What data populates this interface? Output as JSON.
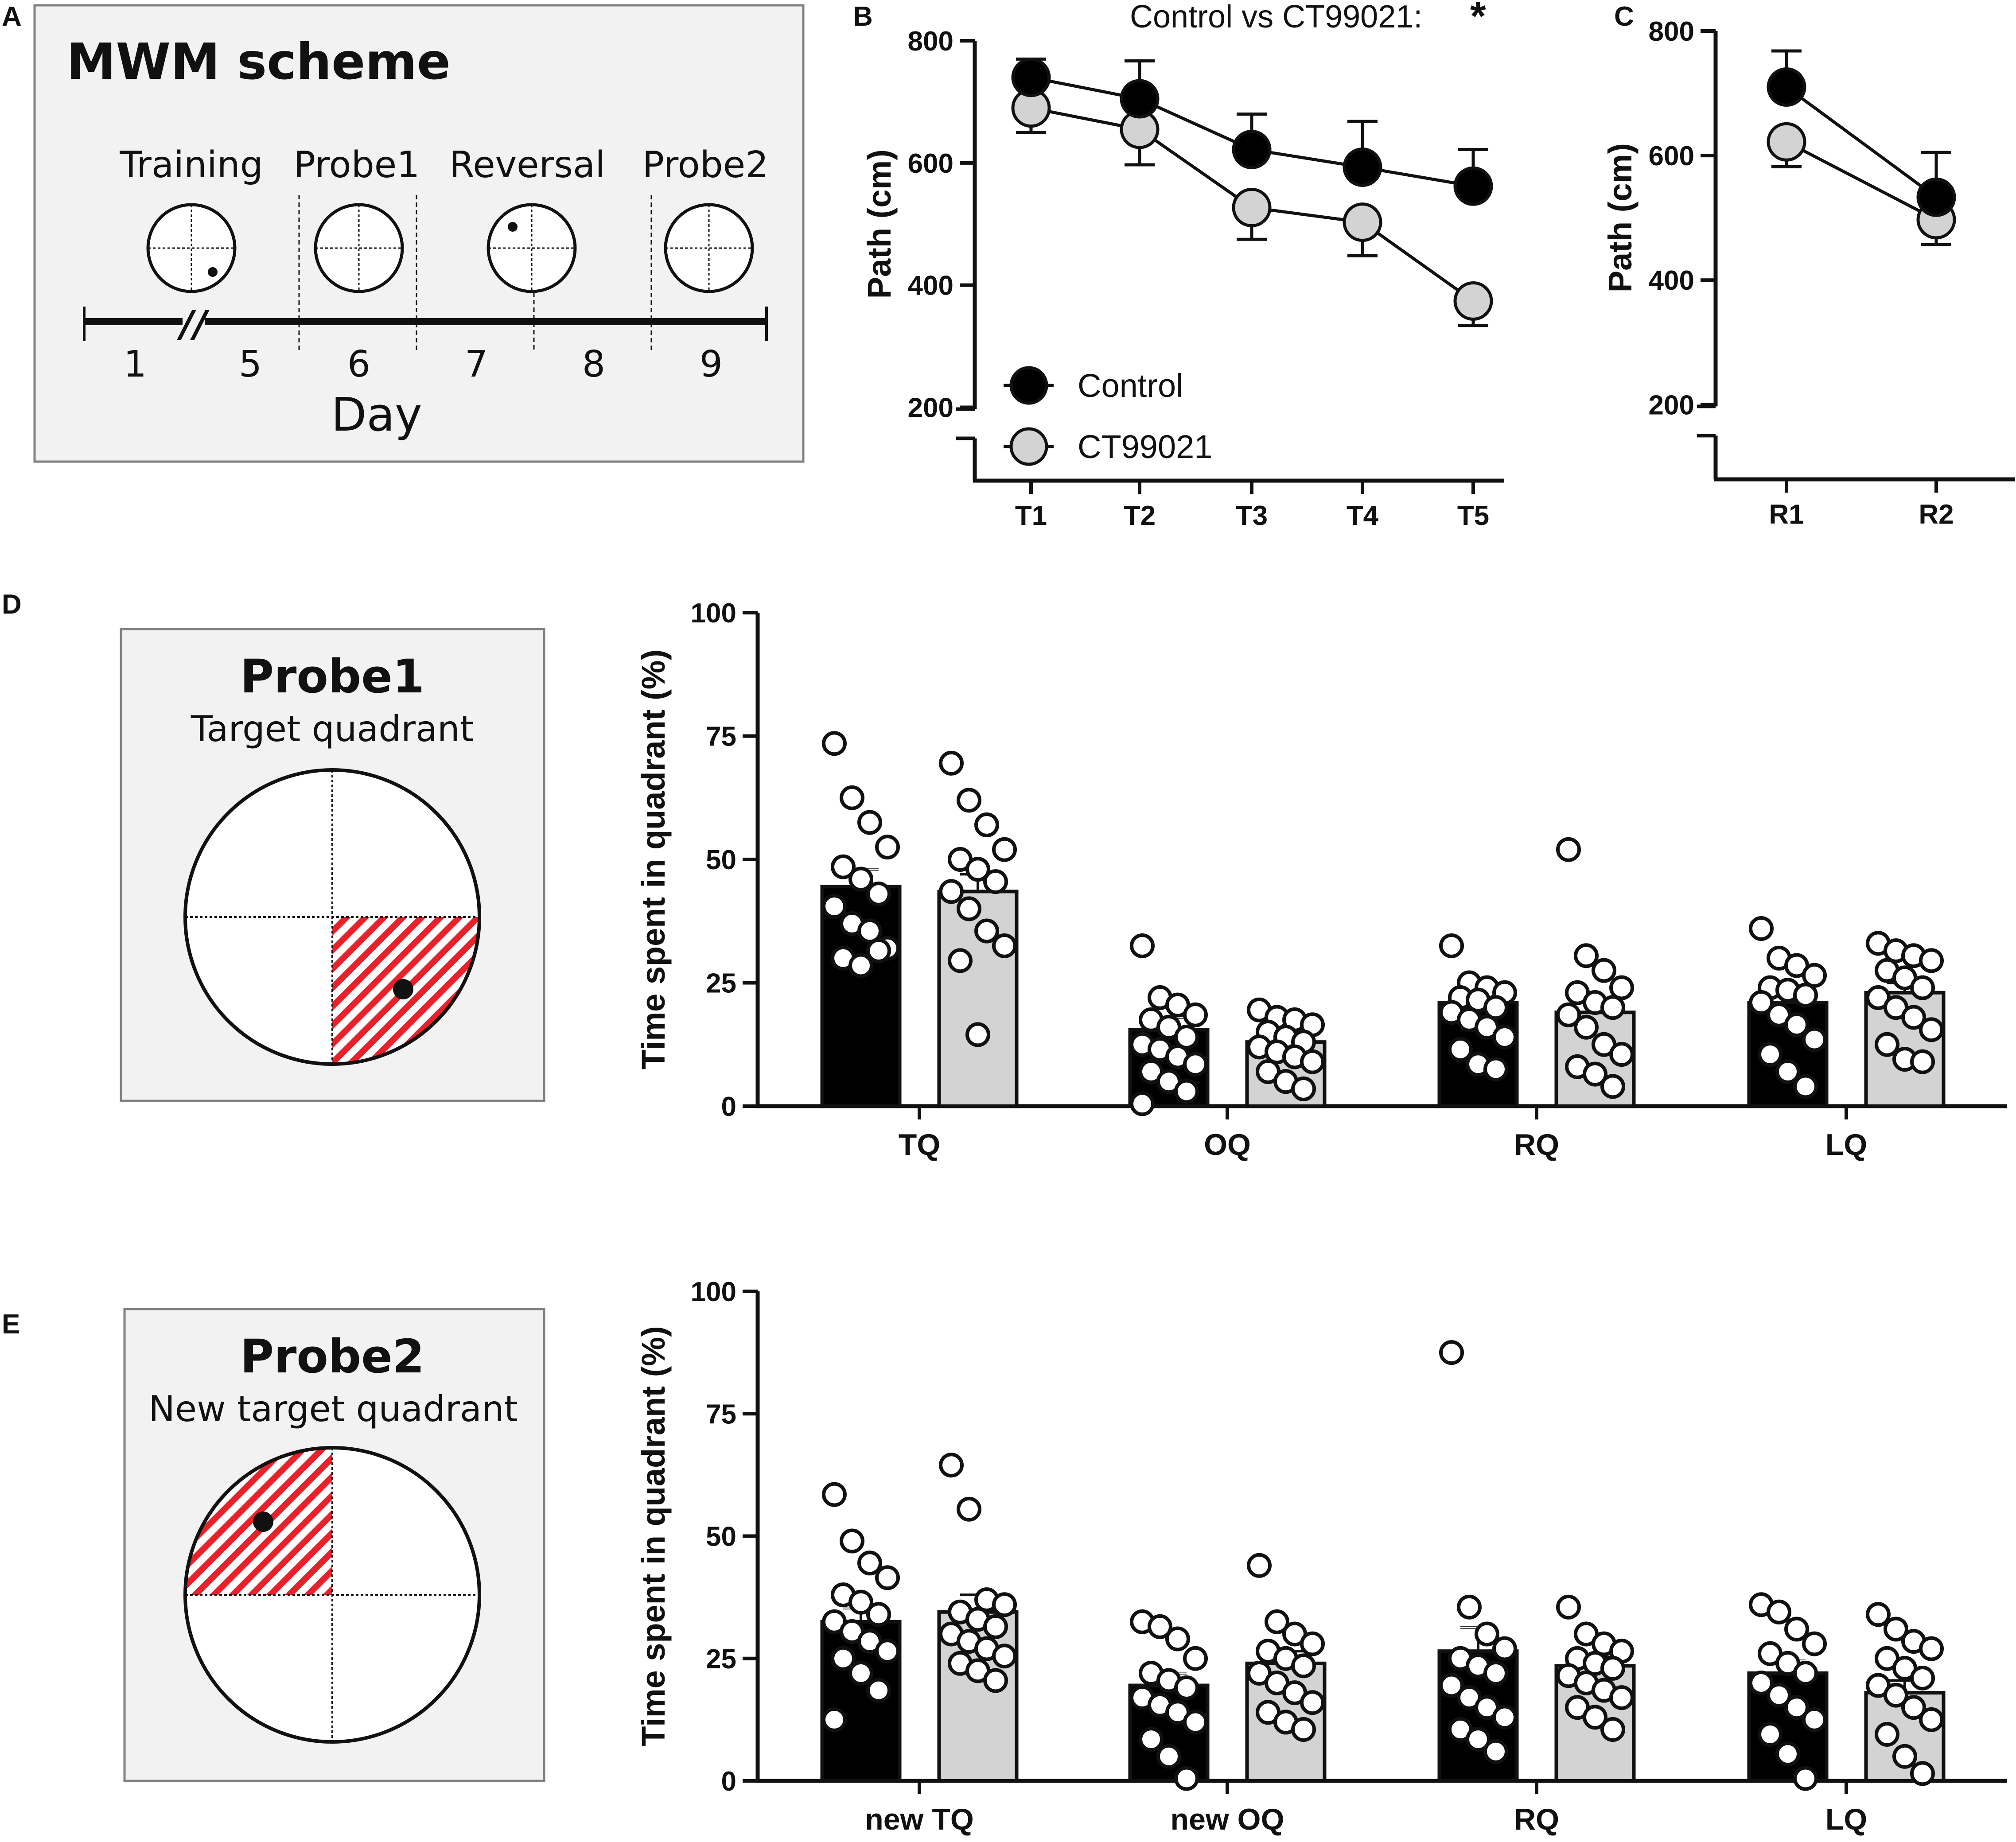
{
  "panels": {
    "A": {
      "letter": "A",
      "title": "MWM scheme",
      "phases": [
        "Training",
        "Probe1",
        "Reversal",
        "Probe2"
      ],
      "days": [
        "1",
        "5",
        "6",
        "7",
        "8",
        "9"
      ],
      "axis_break": "//",
      "axis_label": "Day"
    },
    "B": {
      "letter": "B"
    },
    "C": {
      "letter": "C"
    },
    "D": {
      "letter": "D",
      "box_title": "Probe1",
      "box_subtitle": "Target quadrant"
    },
    "E": {
      "letter": "E",
      "box_title": "Probe2",
      "box_subtitle": "New target quadrant"
    }
  },
  "colors": {
    "control": "#000000",
    "ct99021": "#d3d3d3",
    "panel_bg": "#f2f2f2",
    "panel_border": "#808080",
    "stripe": "#e8212b"
  },
  "chart_data": [
    {
      "id": "B",
      "type": "line",
      "title": "Control vs CT99021: *",
      "comparison": {
        "text": "Control vs CT99021:",
        "significance": "*"
      },
      "xlabel": "",
      "ylabel": "Path (cm)",
      "categories": [
        "T1",
        "T2",
        "T3",
        "T4",
        "T5"
      ],
      "yticks": [
        200,
        400,
        600,
        800
      ],
      "ylim": [
        80,
        800
      ],
      "axis_break": true,
      "legend": {
        "position": "bottom-left",
        "entries": [
          "Control",
          "CT99021"
        ]
      },
      "series": [
        {
          "name": "Control",
          "values": [
            740,
            705,
            622,
            593,
            562
          ],
          "sem": [
            30,
            62,
            58,
            75,
            60
          ]
        },
        {
          "name": "CT99021",
          "values": [
            690,
            655,
            527,
            503,
            374
          ],
          "sem": [
            40,
            58,
            52,
            55,
            40
          ]
        }
      ]
    },
    {
      "id": "C",
      "type": "line",
      "xlabel": "",
      "ylabel": "Path (cm)",
      "categories": [
        "R1",
        "R2"
      ],
      "yticks": [
        200,
        400,
        600,
        800
      ],
      "ylim": [
        80,
        800
      ],
      "axis_break": true,
      "series": [
        {
          "name": "Control",
          "values": [
            710,
            533
          ],
          "sem": [
            58,
            72
          ]
        },
        {
          "name": "CT99021",
          "values": [
            622,
            497
          ],
          "sem": [
            40,
            40
          ]
        }
      ]
    },
    {
      "id": "D",
      "type": "bar",
      "xlabel": "",
      "ylabel": "Time spent in quadrant (%)",
      "categories": [
        "TQ",
        "OQ",
        "RQ",
        "LQ"
      ],
      "yticks": [
        0,
        25,
        50,
        75,
        100
      ],
      "ylim": [
        0,
        100
      ],
      "series": [
        {
          "name": "Control",
          "values": [
            44.5,
            15.5,
            21,
            21
          ],
          "sem": [
            3.5,
            2.5,
            2.0,
            2.8
          ],
          "points": [
            [
              73.5,
              62.5,
              57.5,
              52.5,
              48.5,
              46,
              43,
              40.5,
              37,
              35.5,
              32,
              30,
              28.5,
              31.5
            ],
            [
              32.5,
              22,
              20.5,
              18.5,
              17.5,
              16,
              14,
              12.5,
              11.5,
              10,
              8.5,
              7,
              5,
              3,
              0.5
            ]
          ]
        },
        {
          "name": "CT99021",
          "values": [
            43.5,
            13,
            19,
            23
          ],
          "sem": [
            3.5,
            1.8,
            2.8,
            2.0
          ],
          "points": [
            [
              69.5,
              62,
              57,
              52,
              50,
              48,
              45.5,
              43.5,
              40,
              35.5,
              32.5,
              29.5,
              14.5
            ],
            [
              19.5,
              18,
              17.5,
              16.5,
              15,
              14,
              13,
              12,
              11,
              10,
              9,
              7,
              5,
              3.5
            ]
          ]
        }
      ],
      "group_points": [
        [
          [
            73.5,
            62.5,
            57.5,
            52.5,
            48.5,
            46,
            43,
            40.5,
            37,
            35.5,
            32,
            30,
            28.5,
            31.5
          ],
          [
            69.5,
            62,
            57,
            52,
            50,
            48,
            45.5,
            43.5,
            40,
            35.5,
            32.5,
            29.5,
            14.5
          ]
        ],
        [
          [
            32.5,
            22,
            20.5,
            18.5,
            17.5,
            16,
            14,
            12.5,
            11.5,
            10,
            8.5,
            7,
            5,
            3,
            0.5
          ],
          [
            19.5,
            18,
            17.5,
            16.5,
            15,
            14,
            13,
            12,
            11,
            10,
            9,
            7,
            5,
            3.5
          ]
        ],
        [
          [
            32.5,
            25,
            24,
            23,
            22,
            21.5,
            20,
            19,
            17.5,
            16,
            14,
            11.5,
            8.5,
            7.5
          ],
          [
            52,
            30.5,
            27.5,
            24,
            23,
            21,
            20,
            18.5,
            16,
            12.5,
            10.5,
            8,
            6.5,
            4
          ]
        ],
        [
          [
            36,
            30,
            28.5,
            26.5,
            24,
            23.5,
            22.5,
            21,
            18.5,
            16.5,
            13.5,
            10.5,
            7,
            4
          ],
          [
            33,
            31.5,
            30.5,
            29.5,
            27.5,
            26,
            24,
            22,
            20,
            18,
            15.5,
            12.5,
            9.5,
            9
          ]
        ]
      ]
    },
    {
      "id": "E",
      "type": "bar",
      "xlabel": "",
      "ylabel": "Time spent in quadrant (%)",
      "categories": [
        "new TQ",
        "new OQ",
        "RQ",
        "LQ"
      ],
      "yticks": [
        0,
        25,
        50,
        75,
        100
      ],
      "ylim": [
        0,
        100
      ],
      "series": [
        {
          "name": "Control",
          "values": [
            32.5,
            19.5,
            26.5,
            22
          ],
          "sem": [
            2.8,
            2.5,
            4.8,
            2.5
          ]
        },
        {
          "name": "CT99021",
          "values": [
            34.5,
            24,
            23.5,
            18
          ],
          "sem": [
            3.5,
            2.5,
            1.8,
            2.5
          ]
        }
      ],
      "group_points": [
        [
          [
            58.5,
            49,
            44.5,
            41.5,
            38,
            36.5,
            34,
            32.5,
            30.5,
            28.5,
            26.5,
            25,
            22,
            18.5,
            12.5
          ],
          [
            64.5,
            55.5,
            37,
            36,
            34.5,
            33,
            31.5,
            30,
            28.5,
            27,
            25.5,
            24,
            22.5,
            20.5
          ]
        ],
        [
          [
            32.5,
            31.5,
            29,
            25,
            22,
            20.5,
            19,
            17,
            15.5,
            14,
            12,
            8.5,
            5,
            0.5
          ],
          [
            44,
            32.5,
            30,
            28,
            26.5,
            25,
            23.5,
            22,
            20,
            18,
            16,
            14,
            12,
            10.5
          ]
        ],
        [
          [
            87.5,
            35.5,
            30,
            27,
            25,
            23.5,
            22,
            19.5,
            17,
            15,
            13,
            10.5,
            8.5,
            6
          ],
          [
            35.5,
            30,
            28,
            26.5,
            25,
            24,
            23,
            21.5,
            20,
            18.5,
            17,
            15,
            13,
            10.5
          ]
        ],
        [
          [
            36,
            34.5,
            31,
            28,
            26,
            24,
            22,
            20,
            17.5,
            15,
            12.5,
            9.5,
            5.5,
            0.5
          ],
          [
            34,
            31,
            28.5,
            27,
            25,
            23,
            21,
            19.5,
            17.5,
            15,
            12.5,
            9.5,
            5,
            1.5
          ]
        ]
      ]
    }
  ]
}
